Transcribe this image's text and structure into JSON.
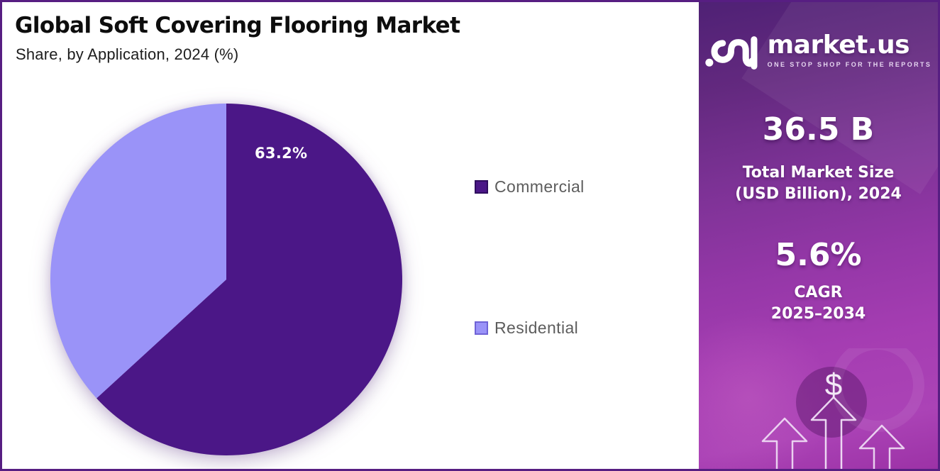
{
  "header": {
    "title": "Global Soft Covering Flooring Market",
    "subtitle": "Share, by Application, 2024 (%)"
  },
  "chart_data": {
    "type": "pie",
    "title": "Global Soft Covering Flooring Market",
    "subtitle": "Share, by Application, 2024 (%)",
    "unit": "percent",
    "slices": [
      {
        "label": "Commercial",
        "value": 63.2,
        "color": "#4b1787",
        "border": "#2f0d5e"
      },
      {
        "label": "Residential",
        "value": 36.8,
        "color": "#9a93f8",
        "border": "#6f63d6"
      }
    ],
    "shown_slice_label": "63.2%",
    "start_angle_deg": 0,
    "direction": "clockwise",
    "legend_position": "right-center"
  },
  "sidebar": {
    "logo": {
      "brand": "market.us",
      "tagline": "ONE STOP SHOP FOR THE REPORTS"
    },
    "market_size": {
      "value": "36.5 B",
      "label_line1": "Total Market Size",
      "label_line2": "(USD Billion), 2024"
    },
    "cagr": {
      "value": "5.6%",
      "label_line1": "CAGR",
      "label_line2": "2025–2034"
    },
    "dollar_sign": "$",
    "colors": {
      "background_top": "#4f2175",
      "background_bottom": "#ab43b6",
      "text": "#ffffff"
    }
  }
}
